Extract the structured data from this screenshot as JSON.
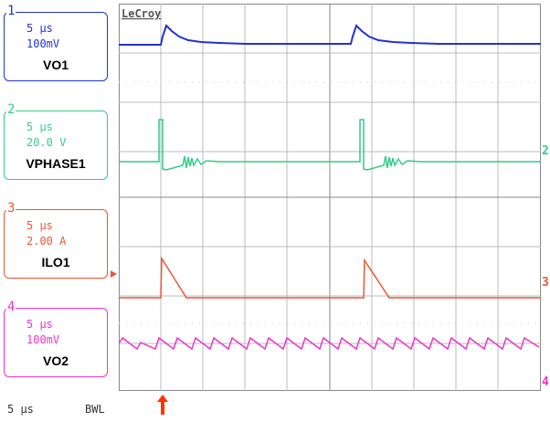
{
  "colors": {
    "ch1": "#2233cc",
    "ch2": "#33cc88",
    "ch3": "#ee5533",
    "ch4": "#ee33cc",
    "grid": "#bbbbbb",
    "frame": "#888888"
  },
  "brand": {
    "label": "LeCroy"
  },
  "channels": [
    {
      "number": "1",
      "timebase": "5 µs",
      "scale": "100mV",
      "name": "VO1"
    },
    {
      "number": "2",
      "timebase": "5 µs",
      "scale": "20.0 V",
      "name": "VPHASE1"
    },
    {
      "number": "3",
      "timebase": "5 µs",
      "scale": "2.00 A",
      "name": "ILO1"
    },
    {
      "number": "4",
      "timebase": "5 µs",
      "scale": "100mV",
      "name": "VO2"
    }
  ],
  "footer": {
    "timebase": "5 µs",
    "bwl": "BWL"
  },
  "markers": {
    "ch2_right": "2",
    "ch3_right": "3",
    "ch4_right": "4"
  }
}
